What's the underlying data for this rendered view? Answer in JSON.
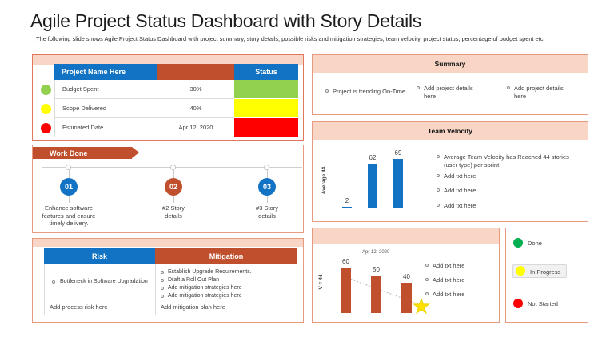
{
  "slide": {
    "title": "Agile Project Status Dashboard with Story Details",
    "subtitle": "The following slide shows Agile Project Status Dashboard with project summary, story details, possible risks and mitigation strategies, team velocity,  project status, percentage of budget spent etc."
  },
  "project_table": {
    "header": {
      "name": "Project Name Here",
      "status": "Status"
    },
    "rows": [
      {
        "label": "Budget Spent",
        "value": "30%",
        "status_color": "#92d050"
      },
      {
        "label": "Scope Delivered",
        "value": "40%",
        "status_color": "#ffff00"
      },
      {
        "label": "Estimated  Date",
        "value": "Apr 12, 2020",
        "status_color": "#ff0000"
      }
    ]
  },
  "work_done": {
    "banner_label": "Work Done",
    "steps": [
      {
        "num": "01",
        "color": "#1273c4",
        "text": "Enhance software features and ensure timely delivery."
      },
      {
        "num": "02",
        "color": "#c0502d",
        "text": "#2 Story details"
      },
      {
        "num": "03",
        "color": "#1273c4",
        "text": "#3 Story details"
      }
    ]
  },
  "risk_table": {
    "headers": {
      "risk": "Risk",
      "mitigation": "Mitigation"
    },
    "risk_item": "Bottleneck in Software Upgradation",
    "mitigation_items": [
      "Establish Upgrade Requirements.",
      "Draft a Roll Out Plan",
      "Add mitigation strategies here",
      "Add mitigation strategies here"
    ],
    "risk_placeholder": "Add process risk here",
    "mitigation_placeholder": "Add mitigation plan here"
  },
  "summary": {
    "title": "Summary",
    "items": [
      "Project is trending On-Time",
      "Add project details here",
      "Add project details here"
    ]
  },
  "team_velocity": {
    "notes": [
      "Average Team Velocity has Reached 44 stories (user type) per sprint",
      "Add txt here",
      "Add txt here",
      "Add txt here"
    ]
  },
  "velocity_trend": {
    "notes": [
      "Add txt here",
      "Add txt here",
      "Add txt here"
    ]
  },
  "legend": {
    "items": [
      {
        "label": "Done",
        "color": "#00b050"
      },
      {
        "label": "In Progress",
        "color": "#ffff00"
      },
      {
        "label": "Not Started",
        "color": "#ff0000"
      }
    ]
  },
  "chart_data": [
    {
      "id": "team-velocity",
      "type": "bar",
      "values": [
        2,
        62,
        69
      ],
      "title": "Team Velocity",
      "ylabel": "Average 44",
      "bar_color": "#1273c4",
      "data_labels": true
    },
    {
      "id": "velocity-trend",
      "type": "bar",
      "values": [
        60,
        50,
        40
      ],
      "annotation": "Apr 12, 2020",
      "ylabel": "V = 44",
      "bar_color": "#c0502d",
      "data_labels": true,
      "trendline": "declining-dotted-line-to-star"
    }
  ]
}
